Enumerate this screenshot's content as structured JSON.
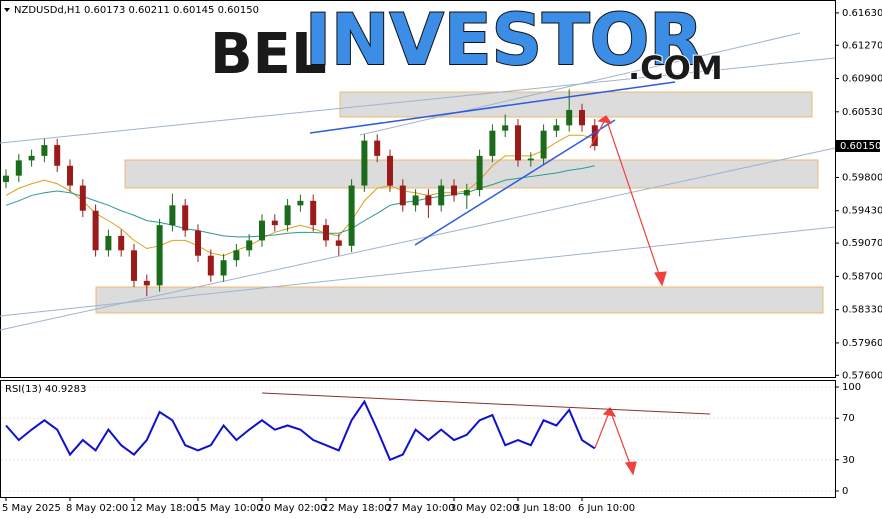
{
  "chart_data": {
    "type": "candlestick",
    "title": "NZDUSDd,H1  0.60173 0.60211 0.60145 0.60150",
    "watermark": [
      "BEL",
      "INVESTOR",
      ".COM"
    ],
    "categories": [
      "5 May 2025",
      null,
      null,
      null,
      null,
      "8 May 02:00",
      null,
      null,
      null,
      null,
      "12 May 18:00",
      null,
      null,
      null,
      null,
      "15 May 10:00",
      null,
      null,
      null,
      null,
      "20 May 02:00",
      null,
      null,
      null,
      null,
      "22 May 18:00",
      null,
      null,
      null,
      null,
      "27 May 10:00",
      null,
      null,
      null,
      null,
      "30 May 02:00",
      null,
      null,
      null,
      null,
      "3 Jun 18:00",
      null,
      null,
      null,
      null,
      "6 Jun 10:00",
      null
    ],
    "candles": [
      [
        0.5975,
        0.5989,
        0.5968,
        0.5982
      ],
      [
        0.5982,
        0.6006,
        0.5975,
        0.5999
      ],
      [
        0.5999,
        0.6011,
        0.5992,
        0.6004
      ],
      [
        0.6004,
        0.6023,
        0.5997,
        0.6016
      ],
      [
        0.6016,
        0.6023,
        0.5986,
        0.5993
      ],
      [
        0.5993,
        0.6,
        0.5964,
        0.5971
      ],
      [
        0.5971,
        0.5978,
        0.5936,
        0.5943
      ],
      [
        0.5943,
        0.595,
        0.5892,
        0.5899
      ],
      [
        0.5899,
        0.5922,
        0.5892,
        0.5915
      ],
      [
        0.5915,
        0.5922,
        0.5892,
        0.5899
      ],
      [
        0.5899,
        0.5906,
        0.5858,
        0.5865
      ],
      [
        0.5865,
        0.5872,
        0.5848,
        0.586
      ],
      [
        0.586,
        0.5934,
        0.5853,
        0.5927
      ],
      [
        0.5927,
        0.5962,
        0.592,
        0.5949
      ],
      [
        0.5949,
        0.5956,
        0.5914,
        0.5921
      ],
      [
        0.5921,
        0.5928,
        0.5886,
        0.5893
      ],
      [
        0.5893,
        0.59,
        0.5864,
        0.5871
      ],
      [
        0.5871,
        0.5895,
        0.5864,
        0.5888
      ],
      [
        0.5888,
        0.5906,
        0.5881,
        0.5899
      ],
      [
        0.5899,
        0.5917,
        0.5892,
        0.591
      ],
      [
        0.591,
        0.5939,
        0.5903,
        0.5932
      ],
      [
        0.5932,
        0.5939,
        0.592,
        0.5927
      ],
      [
        0.5927,
        0.5956,
        0.592,
        0.5949
      ],
      [
        0.5949,
        0.5961,
        0.5942,
        0.5954
      ],
      [
        0.5954,
        0.5961,
        0.592,
        0.5927
      ],
      [
        0.5927,
        0.5934,
        0.5903,
        0.591
      ],
      [
        0.591,
        0.5917,
        0.5893,
        0.5904
      ],
      [
        0.5904,
        0.5978,
        0.5897,
        0.5971
      ],
      [
        0.5971,
        0.6028,
        0.5964,
        0.6021
      ],
      [
        0.6021,
        0.6028,
        0.5997,
        0.6004
      ],
      [
        0.6004,
        0.6011,
        0.5964,
        0.5971
      ],
      [
        0.5971,
        0.5978,
        0.5942,
        0.5949
      ],
      [
        0.5949,
        0.5967,
        0.5942,
        0.596
      ],
      [
        0.596,
        0.5967,
        0.5935,
        0.5949
      ],
      [
        0.5949,
        0.5978,
        0.5942,
        0.5971
      ],
      [
        0.5971,
        0.5978,
        0.5953,
        0.596
      ],
      [
        0.596,
        0.5973,
        0.5945,
        0.5966
      ],
      [
        0.5966,
        0.6011,
        0.5959,
        0.6004
      ],
      [
        0.6004,
        0.6039,
        0.5997,
        0.6032
      ],
      [
        0.6032,
        0.605,
        0.6025,
        0.6038
      ],
      [
        0.6038,
        0.6045,
        0.5992,
        0.5999
      ],
      [
        0.5999,
        0.6008,
        0.5992,
        0.6001
      ],
      [
        0.6001,
        0.6039,
        0.5994,
        0.6032
      ],
      [
        0.6032,
        0.6045,
        0.6025,
        0.6038
      ],
      [
        0.6038,
        0.6078,
        0.6031,
        0.6055
      ],
      [
        0.6055,
        0.6062,
        0.6031,
        0.6038
      ],
      [
        0.6038,
        0.6045,
        0.601,
        0.6015
      ]
    ],
    "bull_color": "#1a6b1a",
    "bear_color": "#9b1b1b",
    "moving_averages": [
      {
        "color": "#d9a21b",
        "values": [
          0.596,
          0.5968,
          0.5973,
          0.5977,
          0.5973,
          0.5965,
          0.5954,
          0.594,
          0.5932,
          0.5923,
          0.591,
          0.5901,
          0.5904,
          0.591,
          0.591,
          0.5904,
          0.5896,
          0.5893,
          0.5899,
          0.5904,
          0.5912,
          0.5919,
          0.5923,
          0.5927,
          0.5923,
          0.5918,
          0.5915,
          0.5932,
          0.5954,
          0.5968,
          0.5971,
          0.5965,
          0.5963,
          0.596,
          0.5963,
          0.5963,
          0.5965,
          0.5977,
          0.5993,
          0.6004,
          0.6004,
          0.6004,
          0.601,
          0.6019,
          0.6027,
          0.6027,
          0.6023
        ]
      },
      {
        "color": "#2b9a94",
        "values": [
          0.5949,
          0.5954,
          0.596,
          0.5963,
          0.5965,
          0.5963,
          0.5959,
          0.5954,
          0.5949,
          0.5943,
          0.5938,
          0.5932,
          0.593,
          0.5927,
          0.5923,
          0.5921,
          0.5918,
          0.5915,
          0.5914,
          0.5914,
          0.5915,
          0.5916,
          0.5918,
          0.5919,
          0.5919,
          0.5918,
          0.5918,
          0.5923,
          0.5932,
          0.594,
          0.5949,
          0.5952,
          0.5954,
          0.5957,
          0.5959,
          0.5961,
          0.5963,
          0.5968,
          0.5972,
          0.5977,
          0.5979,
          0.5981,
          0.5983,
          0.5985,
          0.5988,
          0.599,
          0.5993
        ]
      }
    ],
    "ylim": [
      0.5757,
      0.6174
    ],
    "yticks": [
      {
        "value": 0.6163,
        "label": "0.61630"
      },
      {
        "value": 0.6127,
        "label": "0.61270"
      },
      {
        "value": 0.609,
        "label": "0.60900"
      },
      {
        "value": 0.6053,
        "label": "0.60530"
      },
      {
        "value": 0.598,
        "label": "0.59800"
      },
      {
        "value": 0.5943,
        "label": "0.59430"
      },
      {
        "value": 0.5907,
        "label": "0.59070"
      },
      {
        "value": 0.587,
        "label": "0.58700"
      },
      {
        "value": 0.5833,
        "label": "0.58330"
      },
      {
        "value": 0.5796,
        "label": "0.57960"
      },
      {
        "value": 0.576,
        "label": "0.57600"
      }
    ],
    "last_price": {
      "value": 0.6015,
      "label": "0.60150"
    },
    "rsi": {
      "title": "RSI(13) 40.9283",
      "color": "#1010d0",
      "values": [
        63,
        49,
        59,
        68,
        59,
        35,
        49,
        39,
        59,
        44,
        35,
        49,
        76,
        68,
        44,
        39,
        44,
        63,
        49,
        59,
        68,
        59,
        63,
        59,
        49,
        44,
        39,
        68,
        86,
        59,
        30,
        35,
        59,
        49,
        59,
        49,
        54,
        68,
        73,
        44,
        49,
        44,
        68,
        63,
        78,
        49,
        40.9
      ],
      "ylim": [
        -5.8,
        105.8
      ],
      "yticks": [
        100,
        70,
        30,
        0
      ]
    }
  }
}
